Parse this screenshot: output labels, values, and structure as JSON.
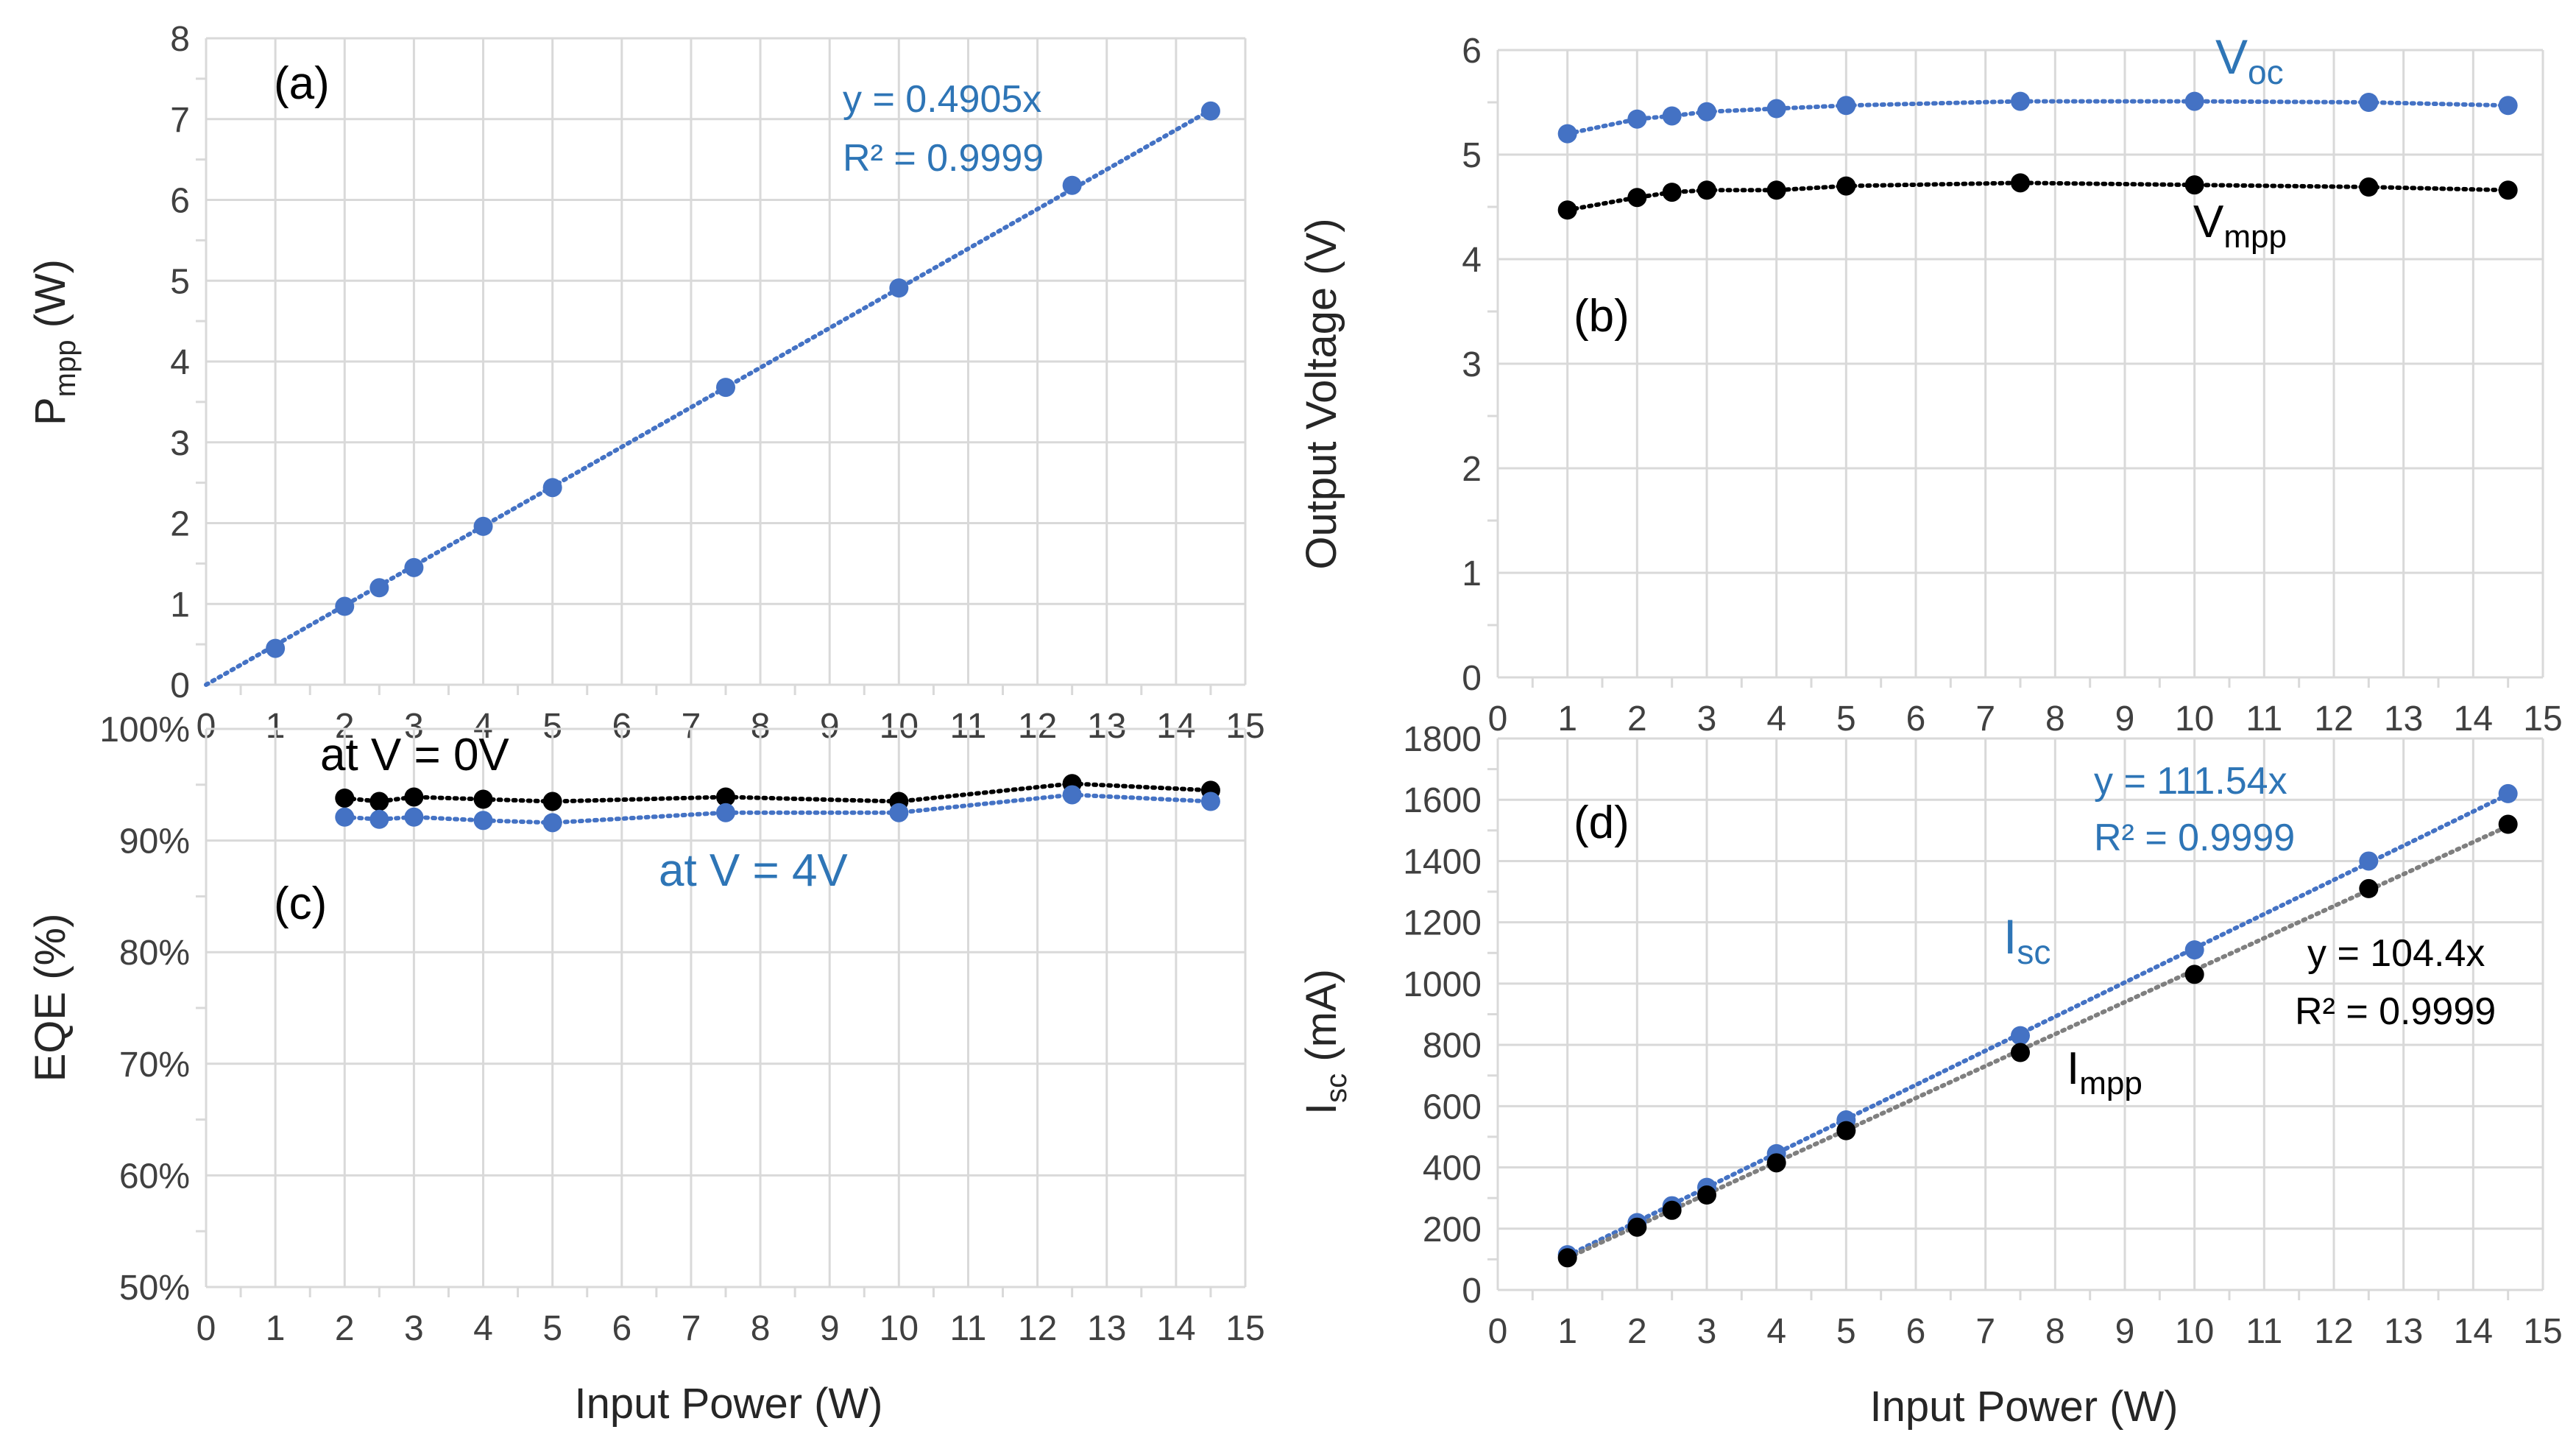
{
  "figure": {
    "colors": {
      "blue": "#4472C4",
      "blue_text": "#2E75B6",
      "black": "#000000",
      "grid": "#D9D9D9",
      "gray_line": "#7F7F7F"
    }
  },
  "chart_data": [
    {
      "id": "a",
      "type": "scatter",
      "panel_label": "(a)",
      "xlabel": "",
      "ylabel_main": "P",
      "ylabel_sub": "mpp",
      "ylabel_tail": " (W)",
      "xlim": [
        0,
        15
      ],
      "ylim": [
        0,
        8
      ],
      "xticks": [
        "0",
        "1",
        "2",
        "3",
        "4",
        "5",
        "6",
        "7",
        "8",
        "9",
        "10",
        "11",
        "12",
        "13",
        "14",
        "15"
      ],
      "yticks": [
        "0",
        "1",
        "2",
        "3",
        "4",
        "5",
        "6",
        "7",
        "8"
      ],
      "grid": true,
      "series": [
        {
          "color": "#4472C4",
          "x": [
            1,
            2,
            2.5,
            3,
            4,
            5,
            7.5,
            10,
            12.5,
            14.5
          ],
          "y": [
            0.45,
            0.97,
            1.2,
            1.45,
            1.96,
            2.44,
            3.68,
            4.91,
            6.18,
            7.1
          ],
          "trendline": {
            "kind": "linear_through_origin",
            "slope": 0.4905,
            "from": 0,
            "to": 14.5,
            "equation": "y = 0.4905x",
            "r2": "R² = 0.9999"
          }
        }
      ]
    },
    {
      "id": "b",
      "type": "scatter",
      "panel_label": "(b)",
      "xlabel": "",
      "ylabel": "Output Voltage (V)",
      "xlim": [
        0,
        15
      ],
      "ylim": [
        0,
        6
      ],
      "xticks": [
        "0",
        "1",
        "2",
        "3",
        "4",
        "5",
        "6",
        "7",
        "8",
        "9",
        "10",
        "11",
        "12",
        "13",
        "14",
        "15"
      ],
      "yticks": [
        "0",
        "1",
        "2",
        "3",
        "4",
        "5",
        "6"
      ],
      "grid": true,
      "series": [
        {
          "label_main": "V",
          "label_sub": "oc",
          "color": "#4472C4",
          "x": [
            1,
            2,
            2.5,
            3,
            4,
            5,
            7.5,
            10,
            12.5,
            14.5
          ],
          "y": [
            5.2,
            5.34,
            5.37,
            5.41,
            5.44,
            5.47,
            5.51,
            5.51,
            5.5,
            5.47
          ]
        },
        {
          "label_main": "V",
          "label_sub": "mpp",
          "color": "#000000",
          "x": [
            1,
            2,
            2.5,
            3,
            4,
            5,
            7.5,
            10,
            12.5,
            14.5
          ],
          "y": [
            4.47,
            4.59,
            4.64,
            4.66,
            4.66,
            4.7,
            4.73,
            4.71,
            4.69,
            4.66
          ]
        }
      ]
    },
    {
      "id": "c",
      "type": "scatter",
      "panel_label": "(c)",
      "xlabel": "Input Power (W)",
      "ylabel": "EQE (%)",
      "xlim": [
        0,
        15
      ],
      "ylim": [
        50,
        100
      ],
      "xticks": [
        "0",
        "1",
        "2",
        "3",
        "4",
        "5",
        "6",
        "7",
        "8",
        "9",
        "10",
        "11",
        "12",
        "13",
        "14",
        "15"
      ],
      "yticks": [
        "50%",
        "60%",
        "70%",
        "80%",
        "90%",
        "100%"
      ],
      "grid": true,
      "series": [
        {
          "label": "at V = 0V",
          "color": "#000000",
          "x": [
            2,
            2.5,
            3,
            4,
            5,
            7.5,
            10,
            12.5,
            14.5
          ],
          "y": [
            93.8,
            93.5,
            93.9,
            93.7,
            93.5,
            93.9,
            93.5,
            95.1,
            94.5
          ]
        },
        {
          "label": "at V = 4V",
          "color": "#4472C4",
          "x": [
            2,
            2.5,
            3,
            4,
            5,
            7.5,
            10,
            12.5,
            14.5
          ],
          "y": [
            92.1,
            91.9,
            92.1,
            91.8,
            91.6,
            92.5,
            92.5,
            94.1,
            93.5
          ]
        }
      ]
    },
    {
      "id": "d",
      "type": "scatter",
      "panel_label": "(d)",
      "xlabel": "Input Power (W)",
      "ylabel_main": "I",
      "ylabel_sub": "sc",
      "ylabel_tail": " (mA)",
      "xlim": [
        0,
        15
      ],
      "ylim": [
        0,
        1800
      ],
      "xticks": [
        "0",
        "1",
        "2",
        "3",
        "4",
        "5",
        "6",
        "7",
        "8",
        "9",
        "10",
        "11",
        "12",
        "13",
        "14",
        "15"
      ],
      "yticks": [
        "0",
        "200",
        "400",
        "600",
        "800",
        "1000",
        "1200",
        "1400",
        "1600",
        "1800"
      ],
      "grid": true,
      "series": [
        {
          "label_main": "I",
          "label_sub": "sc",
          "color": "#4472C4",
          "x": [
            1,
            2,
            2.5,
            3,
            4,
            5,
            7.5,
            10,
            12.5,
            14.5
          ],
          "y": [
            115,
            220,
            275,
            335,
            445,
            555,
            830,
            1110,
            1400,
            1620
          ],
          "trendline": {
            "kind": "linear_through_origin",
            "slope": 111.54,
            "from": 1,
            "to": 14.5,
            "equation": "y = 111.54x",
            "r2": "R² = 0.9999"
          }
        },
        {
          "label_main": "I",
          "label_sub": "mpp",
          "color": "#000000",
          "x": [
            1,
            2,
            2.5,
            3,
            4,
            5,
            7.5,
            10,
            12.5,
            14.5
          ],
          "y": [
            105,
            205,
            260,
            310,
            415,
            520,
            775,
            1030,
            1310,
            1520
          ],
          "trendline": {
            "kind": "linear_through_origin",
            "slope": 104.4,
            "from": 1,
            "to": 14.5,
            "equation": "y = 104.4x",
            "r2": "R² = 0.9999"
          }
        }
      ]
    }
  ]
}
